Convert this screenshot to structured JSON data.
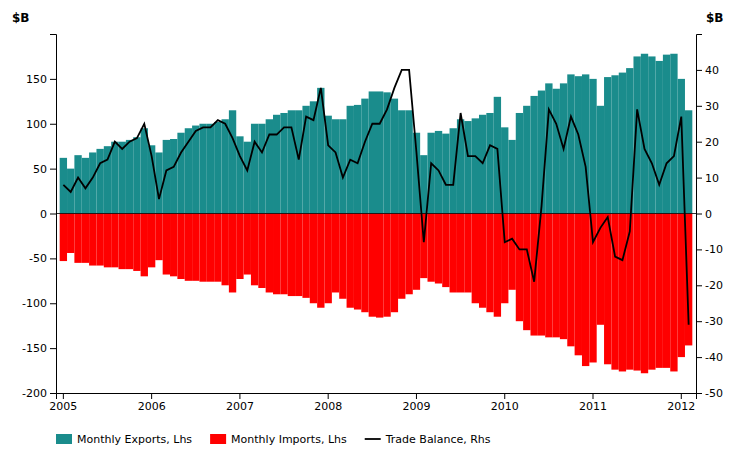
{
  "chart_data": {
    "type": "bar",
    "ylabel": "$B",
    "y2label": "$B",
    "categories": [
      "2005",
      null,
      null,
      null,
      null,
      null,
      null,
      null,
      null,
      null,
      null,
      null,
      "2006",
      null,
      null,
      null,
      null,
      null,
      null,
      null,
      null,
      null,
      null,
      null,
      "2007",
      null,
      null,
      null,
      null,
      null,
      null,
      null,
      null,
      null,
      null,
      null,
      "2008",
      null,
      null,
      null,
      null,
      null,
      null,
      null,
      null,
      null,
      null,
      null,
      "2009",
      null,
      null,
      null,
      null,
      null,
      null,
      null,
      null,
      null,
      null,
      null,
      "2010",
      null,
      null,
      null,
      null,
      null,
      null,
      null,
      null,
      null,
      null,
      null,
      "2011",
      null,
      null,
      null,
      null,
      null,
      null,
      null,
      null,
      null,
      null,
      null,
      "2012",
      null
    ],
    "ylim": [
      -200,
      200
    ],
    "yticks": [
      -200,
      -150,
      -100,
      -50,
      0,
      50,
      100,
      150
    ],
    "y2lim": [
      -50,
      50
    ],
    "y2ticks": [
      -50,
      -40,
      -30,
      -20,
      -10,
      0,
      10,
      20,
      30,
      40
    ],
    "grid": false,
    "legend": "bottom",
    "series": [
      {
        "name": "Monthly Exports, Lhs",
        "type": "bar",
        "color": "#1a8c8c",
        "values": [
          62,
          50,
          65,
          62,
          68,
          72,
          75,
          80,
          80,
          82,
          85,
          95,
          76,
          68,
          82,
          83,
          90,
          95,
          98,
          100,
          100,
          102,
          105,
          115,
          86,
          80,
          100,
          100,
          105,
          110,
          112,
          115,
          115,
          120,
          125,
          140,
          109,
          105,
          105,
          120,
          121,
          128,
          136,
          136,
          135,
          128,
          115,
          115,
          90,
          65,
          90,
          92,
          89,
          95,
          105,
          103,
          106,
          110,
          112,
          130,
          96,
          82,
          112,
          120,
          131,
          137,
          145,
          139,
          145,
          155,
          153,
          155,
          150,
          120,
          152,
          154,
          157,
          162,
          175,
          178,
          175,
          170,
          177,
          178,
          150,
          115
        ]
      },
      {
        "name": "Monthly Imports, Lhs",
        "type": "bar",
        "color": "#FF0000",
        "values": [
          -53,
          -44,
          -55,
          -55,
          -58,
          -58,
          -60,
          -60,
          -62,
          -62,
          -64,
          -70,
          -60,
          -52,
          -68,
          -70,
          -73,
          -75,
          -75,
          -76,
          -76,
          -76,
          -80,
          -88,
          -73,
          -68,
          -80,
          -83,
          -88,
          -90,
          -90,
          -92,
          -92,
          -94,
          -100,
          -105,
          -100,
          -88,
          -95,
          -105,
          -107,
          -110,
          -115,
          -116,
          -115,
          -110,
          -95,
          -90,
          -85,
          -72,
          -76,
          -78,
          -82,
          -88,
          -88,
          -88,
          -100,
          -105,
          -110,
          -115,
          -100,
          -85,
          -120,
          -130,
          -136,
          -136,
          -138,
          -138,
          -140,
          -148,
          -158,
          -170,
          -166,
          -124,
          -168,
          -174,
          -176,
          -174,
          -175,
          -178,
          -174,
          -172,
          -172,
          -176,
          -160,
          -147
        ]
      },
      {
        "name": "Trade Balance, Rhs",
        "type": "line",
        "axis": "y2",
        "color": "#000000",
        "values": [
          8,
          6,
          10,
          7,
          10,
          14,
          15,
          20,
          18,
          20,
          21,
          25,
          16,
          4,
          12,
          13,
          17,
          20,
          23,
          24,
          24,
          26,
          25,
          21,
          16,
          12,
          20,
          17,
          22,
          22,
          24,
          24,
          15,
          27,
          26,
          35,
          19,
          17,
          10,
          15,
          14,
          20,
          25,
          25,
          29,
          35,
          40,
          40,
          17,
          -8,
          14,
          12,
          8,
          8,
          28,
          16,
          16,
          14,
          19,
          18,
          -8,
          -7,
          -10,
          -10,
          -19,
          2,
          29,
          25,
          18,
          27,
          22,
          13,
          -8,
          -4,
          -1,
          -12,
          -13,
          -5,
          29,
          18,
          14,
          8,
          14,
          16,
          27,
          -31
        ]
      }
    ]
  }
}
